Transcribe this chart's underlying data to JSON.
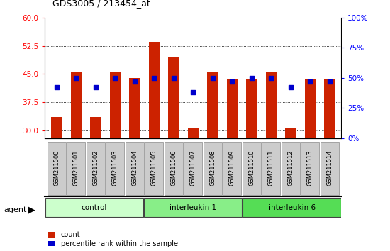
{
  "title": "GDS3005 / 213454_at",
  "samples": [
    "GSM211500",
    "GSM211501",
    "GSM211502",
    "GSM211503",
    "GSM211504",
    "GSM211505",
    "GSM211506",
    "GSM211507",
    "GSM211508",
    "GSM211509",
    "GSM211510",
    "GSM211511",
    "GSM211512",
    "GSM211513",
    "GSM211514"
  ],
  "counts": [
    33.5,
    45.5,
    33.5,
    45.5,
    44.0,
    53.5,
    49.5,
    30.5,
    45.5,
    43.5,
    43.5,
    45.5,
    30.5,
    43.5,
    43.5
  ],
  "percentile_ranks": [
    42,
    50,
    42,
    50,
    47,
    50,
    50,
    38,
    50,
    47,
    50,
    50,
    42,
    47,
    47
  ],
  "bar_color": "#cc2200",
  "dot_color": "#0000cc",
  "ylim_left": [
    28,
    60
  ],
  "ylim_right": [
    0,
    100
  ],
  "yticks_left": [
    30,
    37.5,
    45,
    52.5,
    60
  ],
  "yticks_right": [
    0,
    25,
    50,
    75,
    100
  ],
  "groups": [
    {
      "label": "control",
      "start": 0,
      "end": 5
    },
    {
      "label": "interleukin 1",
      "start": 5,
      "end": 10
    },
    {
      "label": "interleukin 6",
      "start": 10,
      "end": 15
    }
  ],
  "group_colors": [
    "#ccffcc",
    "#88ee88",
    "#55dd55"
  ],
  "agent_label": "agent",
  "legend_count": "count",
  "legend_pct": "percentile rank within the sample"
}
